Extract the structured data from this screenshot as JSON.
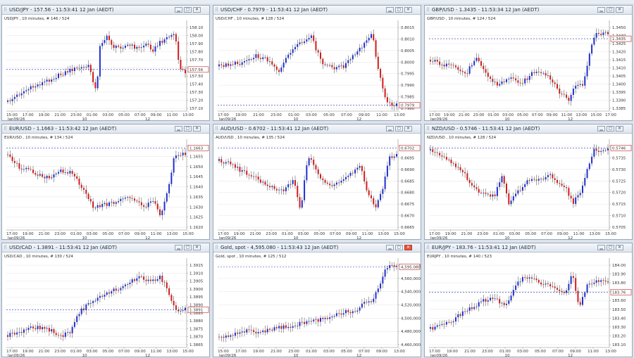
{
  "colors": {
    "up": "#1f2fd0",
    "down": "#d41a1a",
    "marker": "#2030b0",
    "grid": "#e6e6e6"
  },
  "windows": [
    {
      "id": "usdjpy",
      "title": "USD/JPY - 157.56 - 11:53:41  12 Jan (AEDT)",
      "subtitle": "USDJPY , 10 minutes, # 146 / 524",
      "current": "157.56",
      "y_ticks": [
        "158.10",
        "158.00",
        "157.90",
        "157.80",
        "157.70",
        "157.60",
        "157.50",
        "157.40",
        "157.30",
        "157.20",
        "157.10"
      ],
      "x_ticks": [
        "15:00",
        "17:00",
        "19:00",
        "21:00",
        "23:00",
        "01:00",
        "03:00",
        "05:00",
        "07:00",
        "09:00",
        "11:00",
        "13:00"
      ],
      "date_labels": [
        "Jan09/26",
        "10",
        "12"
      ]
    },
    {
      "id": "usdchf",
      "title": "USD/CHF - 0.7979 - 11:53:41  12 Jan (AEDT)",
      "subtitle": "USD/CHF , 10 minutes, # 128 / 524",
      "current": "0.7979",
      "y_ticks": [
        "0.8015",
        "0.8010",
        "0.8005",
        "0.8000",
        "0.7995",
        "0.7990",
        "0.7985",
        "0.7980"
      ],
      "x_ticks": [
        "17:00",
        "19:00",
        "21:00",
        "23:00",
        "01:00",
        "03:00",
        "05:00",
        "07:00",
        "09:00",
        "11:00",
        "13:00"
      ],
      "date_labels": [
        "Jan09/26",
        "10",
        "12"
      ]
    },
    {
      "id": "gbpusd",
      "title": "GBP/USD - 1.3435 - 11:53:34  12 Jan (AEDT)",
      "subtitle": "GBP/USD , 10 minutes, # 124 / 524",
      "current": "1.3435",
      "y_ticks": [
        "1.3450",
        "1.3440",
        "1.3425",
        "1.3420",
        "1.3415",
        "1.3410",
        "1.3405",
        "1.3400",
        "1.3395",
        "1.3390",
        "1.3385"
      ],
      "x_ticks": [
        "17:00",
        "19:00",
        "21:00",
        "23:00",
        "01:00",
        "03:00",
        "05:00",
        "07:00",
        "09:00",
        "11:00",
        "13:00",
        "15:00",
        "17:00"
      ],
      "date_labels": [
        "Jan09/26",
        "10",
        "12"
      ]
    },
    {
      "id": "eurusd",
      "title": "EUR/USD - 1.1663 - 11:53:42  12 Jan (AEDT)",
      "subtitle": "EUR/USD , 10 minutes, # 134 / 524",
      "current": "1.1663",
      "y_ticks": [
        "1.1660",
        "1.1655",
        "1.1650",
        "1.1645",
        "1.1640",
        "1.1635",
        "1.1630",
        "1.1625",
        "1.1620"
      ],
      "x_ticks": [
        "17:00",
        "19:00",
        "21:00",
        "23:00",
        "01:00",
        "03:00",
        "05:00",
        "07:00",
        "09:00",
        "11:00",
        "13:00",
        "15:00"
      ],
      "date_labels": [
        "Jan09/26",
        "10",
        "12"
      ]
    },
    {
      "id": "audusd",
      "title": "AUD/USD - 0.6702 - 11:53:41  12 Jan (AEDT)",
      "subtitle": "AUD/USD , 10 minutes, # 135 / 524",
      "current": "0.6702",
      "y_ticks": [
        "0.6700",
        "0.6695",
        "0.6690",
        "0.6685",
        "0.6680",
        "0.6675",
        "0.6670",
        "0.6665"
      ],
      "x_ticks": [
        "17:00",
        "19:00",
        "21:00",
        "23:00",
        "01:00",
        "03:00",
        "05:00",
        "07:00",
        "09:00",
        "11:00",
        "13:00",
        "15:00"
      ],
      "date_labels": [
        "Jan09/26",
        "10",
        "12"
      ]
    },
    {
      "id": "nzdusd",
      "title": "NZD/USD - 0.5746 - 11:53:41  12 Jan (AEDT)",
      "subtitle": "NZD/USD , 10 minutes, # 128 / 524",
      "current": "0.5746",
      "y_ticks": [
        "0.5740",
        "0.5735",
        "0.5730",
        "0.5725",
        "0.5720",
        "0.5715",
        "0.5710",
        "0.5705"
      ],
      "x_ticks": [
        "17:00",
        "19:00",
        "21:00",
        "23:00",
        "01:00",
        "03:00",
        "05:00",
        "07:00",
        "09:00",
        "11:00",
        "13:00",
        "15:00"
      ],
      "date_labels": [
        "Jan09/26",
        "10",
        "12"
      ]
    },
    {
      "id": "usdcad",
      "title": "USD/CAD - 1.3891 - 11:53:41  12 Jan (AEDT)",
      "subtitle": "USD/CAD , 10 minutes, # 130 / 524",
      "current": "1.3891",
      "y_ticks": [
        "1.3915",
        "1.3910",
        "1.3905",
        "1.3900",
        "1.3895",
        "1.3890",
        "1.3885",
        "1.3880",
        "1.3875",
        "1.3870",
        "1.3865"
      ],
      "x_ticks": [
        "17:00",
        "19:00",
        "21:00",
        "23:00",
        "01:00",
        "03:00",
        "05:00",
        "07:00",
        "09:00",
        "11:00",
        "13:00",
        "15:00"
      ],
      "date_labels": [
        "Jan09/26",
        "10",
        "12"
      ]
    },
    {
      "id": "gold",
      "title": "Gold, spot - 4,595.080 - 11:53:43  12 Jan (AEDT)",
      "subtitle": "Gold, spot , 10 minutes, # 125 / 512",
      "current": "4,595.080",
      "y_ticks": [
        "4,580,000",
        "4,560,000",
        "4,540,000",
        "4,520,000",
        "4,500,000",
        "4,480,000",
        "4,460,000"
      ],
      "x_ticks": [
        "15:00",
        "17:00",
        "19:00",
        "21:00",
        "23:00",
        "01:00",
        "03:00",
        "05:00",
        "07:00",
        "09:00",
        "13:00"
      ],
      "date_labels": [
        "Jan09/26",
        "10",
        "12"
      ]
    },
    {
      "id": "eurjpy",
      "title": "EUR/JPY - 183.76 - 11:53:41  12 Jan (AEDT)",
      "subtitle": "EURJPY , 10 minutes, # 140 / 523",
      "current": "183.76",
      "y_ticks": [
        "184.00",
        "183.90",
        "183.80",
        "183.70",
        "183.60",
        "183.50",
        "183.40",
        "183.30",
        "183.20",
        "183.10"
      ],
      "x_ticks": [
        "17:00",
        "19:00",
        "21:00",
        "23:00",
        "01:00",
        "03:00",
        "05:00",
        "07:00",
        "09:00",
        "11:00",
        "13:00"
      ],
      "date_labels": [
        "Jan09/26",
        "10",
        "12"
      ]
    }
  ]
}
